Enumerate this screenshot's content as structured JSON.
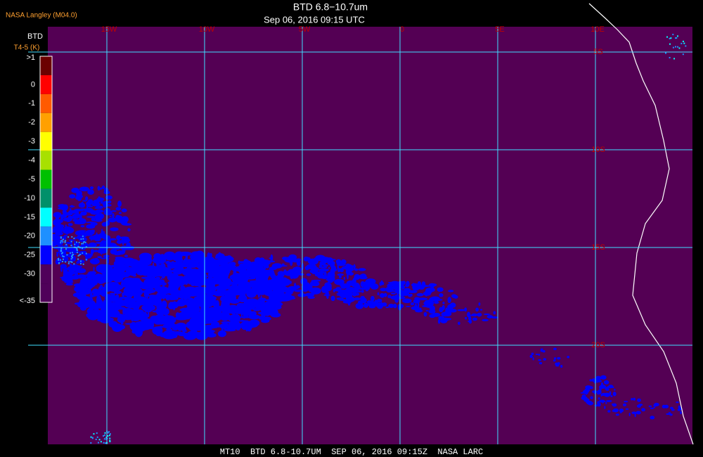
{
  "header": {
    "title": "BTD 6.8−10.7um",
    "subtitle": "Sep 06, 2016 09:15 UTC",
    "source": "NASA Langley (M04.0)"
  },
  "legend": {
    "title": "BTD",
    "unit": "T4-5 (K)",
    "entries": [
      {
        "label": ">1",
        "color": "#6b0000"
      },
      {
        "label": "0",
        "color": "#ff0000"
      },
      {
        "label": "-1",
        "color": "#ff5a00"
      },
      {
        "label": "-2",
        "color": "#ffa000"
      },
      {
        "label": "-3",
        "color": "#ffff00"
      },
      {
        "label": "-4",
        "color": "#a8e000"
      },
      {
        "label": "-5",
        "color": "#00c000"
      },
      {
        "label": "-10",
        "color": "#00906a"
      },
      {
        "label": "-15",
        "color": "#00ffff"
      },
      {
        "label": "-20",
        "color": "#1e90ff"
      },
      {
        "label": "-25",
        "color": "#0000ff"
      },
      {
        "label": "-30",
        "color": "#50005a"
      },
      {
        "label": "<-35",
        "color": "#50005a"
      }
    ]
  },
  "grid": {
    "lon_labels": [
      "15W",
      "10W",
      "5W",
      "0",
      "5E",
      "10E"
    ],
    "lat_labels": [
      "5S",
      "10S",
      "15S",
      "20S"
    ]
  },
  "footer": "MT10  BTD 6.8-10.7UM  SEP 06, 2016 09:15Z  NASA LARC"
}
